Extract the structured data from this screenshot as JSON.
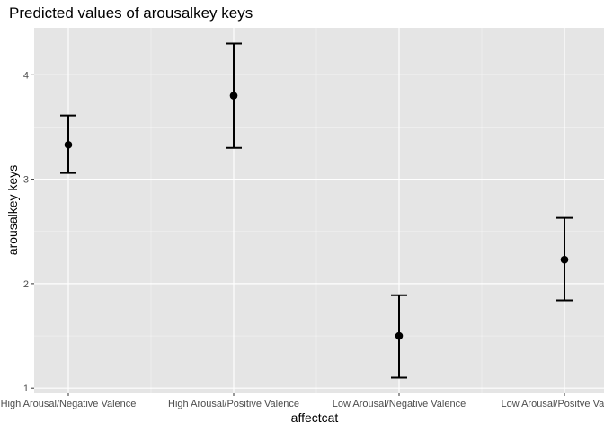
{
  "chart_data": {
    "type": "pointrange",
    "title": "Predicted values of arousalkey keys",
    "xlabel": "affectcat",
    "ylabel": "arousalkey keys",
    "categories": [
      "High Arousal/Negative Valence",
      "High Arousal/Positive Valence",
      "Low Arousal/Negative Valence",
      "Low Arousal/Positve Valence"
    ],
    "series": [
      {
        "values": [
          3.33,
          3.8,
          1.5,
          2.23
        ],
        "lower": [
          3.06,
          3.3,
          1.1,
          1.84
        ],
        "upper": [
          3.61,
          4.3,
          1.89,
          2.63
        ]
      }
    ],
    "ylim": [
      0.95,
      4.45
    ],
    "yticks": [
      1,
      2,
      3,
      4
    ],
    "ytick_labels": [
      "1",
      "2",
      "3",
      "4"
    ],
    "grid": true,
    "colors": {
      "panel_background": "#e5e5e5",
      "grid_major": "#ffffff",
      "point": "#000000",
      "errorbar": "#000000",
      "tick_label": "#4d4d4d"
    }
  }
}
